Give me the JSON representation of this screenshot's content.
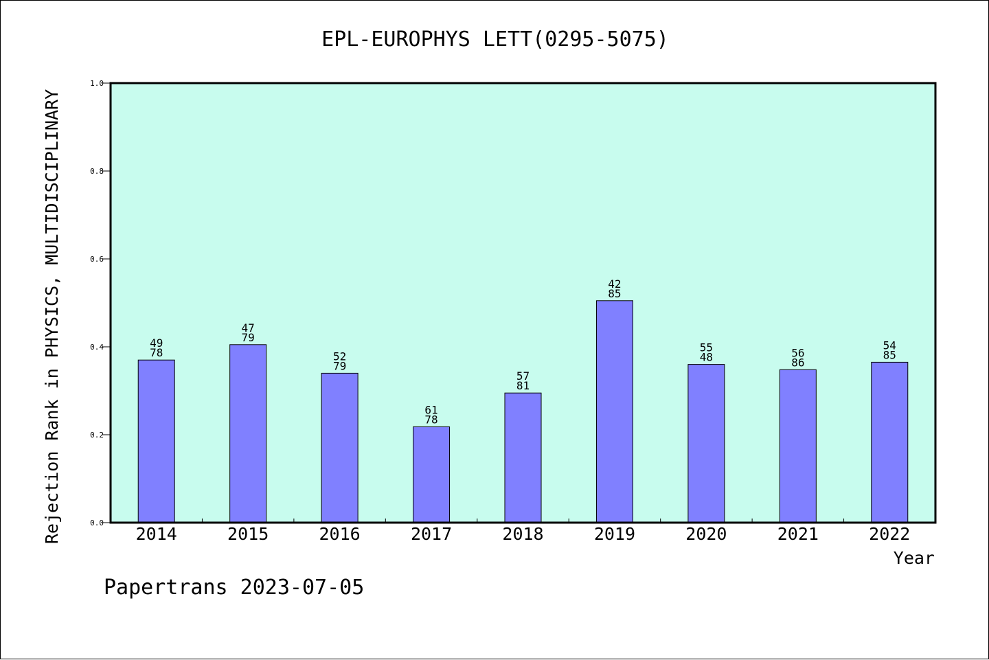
{
  "chart_data": {
    "type": "bar",
    "title": "EPL-EUROPHYS LETT(0295-5075)",
    "xlabel": "Year",
    "ylabel": "Rejection Rank in PHYSICS, MULTIDISCIPLINARY",
    "ylim": [
      0.0,
      1.0
    ],
    "y_ticks": [
      "0.0",
      "0.2",
      "0.4",
      "0.6",
      "0.8",
      "1.0"
    ],
    "grid": false,
    "categories": [
      "2014",
      "2015",
      "2016",
      "2017",
      "2018",
      "2019",
      "2020",
      "2021",
      "2022"
    ],
    "values": [
      0.37,
      0.405,
      0.34,
      0.218,
      0.295,
      0.505,
      0.36,
      0.348,
      0.365
    ],
    "labels_top": [
      "49",
      "47",
      "52",
      "61",
      "57",
      "42",
      "55",
      "56",
      "54"
    ],
    "labels_bottom": [
      "78",
      "79",
      "79",
      "78",
      "81",
      "85",
      "48",
      "86",
      "85"
    ],
    "colors": {
      "bar": "#8080ff",
      "plot_background": "#c8fcee",
      "axis": "#000000"
    }
  },
  "footer": {
    "credit": "Papertrans 2023-07-05"
  }
}
